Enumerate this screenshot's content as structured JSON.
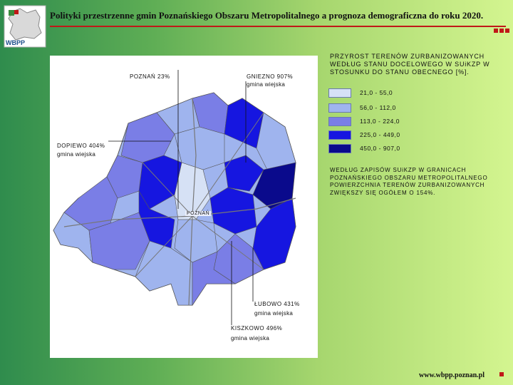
{
  "title": "Polityki przestrzenne gmin Poznańskiego Obszaru Metropolitalnego a prognoza demograficzna do roku 2020.",
  "logo_text": "WBPP",
  "legend": {
    "title": "PRZYROST TERENÓW ZURBANIZOWANYCH WEDŁUG STANU DOCELOWEGO W SUiKZP W STOSUNKU DO STANU OBECNEGO [%].",
    "items": [
      {
        "label": "21,0 - 55,0",
        "color": "#d6e1f5"
      },
      {
        "label": "56,0 - 112,0",
        "color": "#9fb4ee"
      },
      {
        "label": "113,0 - 224,0",
        "color": "#7a7ee6"
      },
      {
        "label": "225,0 - 449,0",
        "color": "#1616e0"
      },
      {
        "label": "450,0 - 907,0",
        "color": "#0a0a8c"
      }
    ]
  },
  "note": "WEDŁUG ZAPISÓW SUiKZP W GRANICACH POZNAŃSKIEGO OBSZARU METROPOLITALNEGO POWIERZCHNIA TERENÓW ZURBANIZOWANYCH ZWIĘKSZY SIĘ OGÓŁEM O 154%.",
  "callouts": {
    "poznan": "POZNAŃ 23%",
    "gniezno": "GNIEZNO 907%",
    "gniezno_sub": "gmina wiejska",
    "dopiewo": "DOPIEWO 404%",
    "dopiewo_sub": "gmina wiejska",
    "lubowo": "ŁUBOWO 431%",
    "lubowo_sub": "gmina wiejska",
    "kiszkowo": "KISZKOWO 496%",
    "kiszkowo_sub": "gmina wiejska"
  },
  "map_label": "POZNAŃ",
  "footer": "www.wbpp.poznan.pl",
  "colors": {
    "accent": "#c01818",
    "panel": "#ffffff"
  }
}
